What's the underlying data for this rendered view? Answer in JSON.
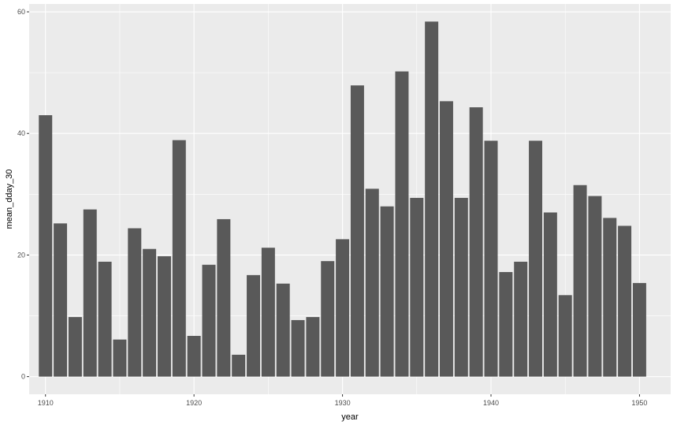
{
  "chart_data": {
    "type": "bar",
    "xlabel": "year",
    "ylabel": "mean_dday_30",
    "x": [
      1910,
      1911,
      1912,
      1913,
      1914,
      1915,
      1916,
      1917,
      1918,
      1919,
      1920,
      1921,
      1922,
      1923,
      1924,
      1925,
      1926,
      1927,
      1928,
      1929,
      1930,
      1931,
      1932,
      1933,
      1934,
      1935,
      1936,
      1937,
      1938,
      1939,
      1940,
      1941,
      1942,
      1943,
      1944,
      1945,
      1946,
      1947,
      1948,
      1949,
      1950
    ],
    "values": [
      43.0,
      25.2,
      9.8,
      27.5,
      18.9,
      6.1,
      24.4,
      21.0,
      19.8,
      38.9,
      6.7,
      18.4,
      25.9,
      3.6,
      16.7,
      21.2,
      15.3,
      9.3,
      9.8,
      19.0,
      22.6,
      47.9,
      30.9,
      28.0,
      50.2,
      29.4,
      58.4,
      45.3,
      29.4,
      44.3,
      38.8,
      17.2,
      18.9,
      38.8,
      27.0,
      13.4,
      31.5,
      29.7,
      26.1,
      24.8,
      15.4
    ],
    "xticks": [
      1910,
      1920,
      1930,
      1940,
      1950
    ],
    "yticks": [
      0,
      20,
      40,
      60
    ],
    "xlim": [
      1908.9,
      1952.1
    ],
    "ylim": [
      -2.9,
      61.3
    ],
    "grid": true,
    "colors": {
      "panel": "#ebebeb",
      "grid": "#ffffff",
      "bar": "#595959",
      "tick": "#333333"
    }
  }
}
